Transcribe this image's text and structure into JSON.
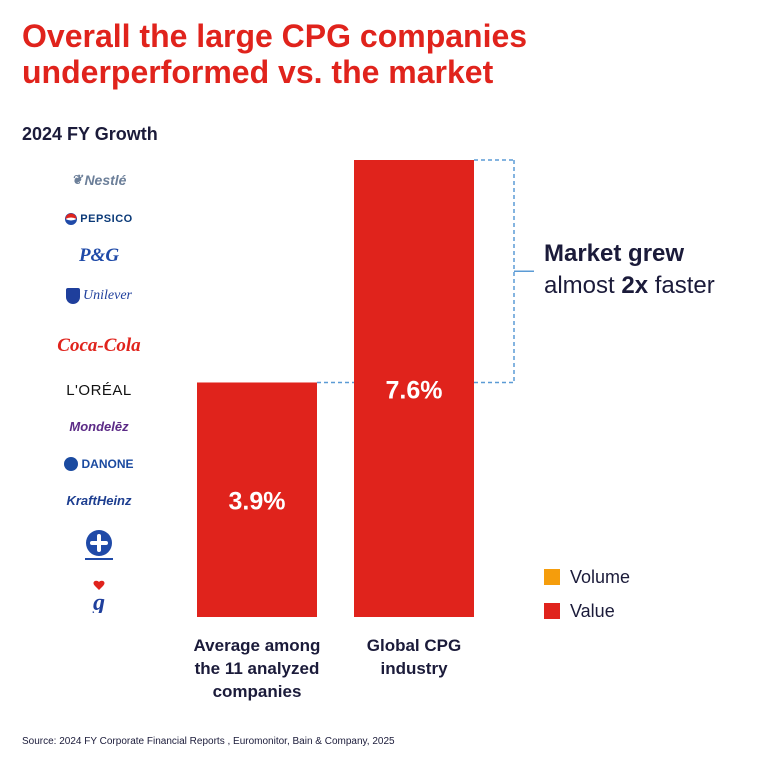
{
  "header": {
    "title": "Overall the large CPG companies underperformed vs. the market",
    "subtitle": "2024 FY Growth"
  },
  "logos": {
    "nestle": "Nestlé",
    "pepsico": "PEPSICO",
    "pg": "P&G",
    "unilever": "Unilever",
    "coca_cola": "Coca-Cola",
    "loreal": "L'ORÉAL",
    "mondelez": "Mondelēz",
    "danone": "DANONE",
    "kraft_heinz": "KraftHeinz",
    "colgate": "COLGATE-PALMOLIVE",
    "general_mills": "General Mills"
  },
  "chart_data": {
    "type": "bar",
    "title": "2024 FY Growth",
    "categories": [
      "Average among the 11 analyzed companies",
      "Global CPG industry"
    ],
    "category_lines": [
      [
        "Average among",
        "the 11 analyzed",
        "companies"
      ],
      [
        "Global CPG",
        "industry"
      ]
    ],
    "values": [
      3.9,
      7.6
    ],
    "data_labels": [
      "3.9%",
      "7.6%"
    ],
    "ylim": [
      0,
      7.6
    ],
    "series": [
      {
        "name": "Value",
        "values": [
          3.9,
          7.6
        ],
        "color": "#e0231c"
      }
    ],
    "legend": [
      {
        "name": "Volume",
        "color": "#f59d0c"
      },
      {
        "name": "Value",
        "color": "#e0231c"
      }
    ],
    "legend_position": "right",
    "grid": false,
    "annotation": {
      "line1": "Market grew",
      "line2_pre": "almost",
      "line2_bold": "2x",
      "line2_post": "faster"
    }
  },
  "colors": {
    "title": "#e0231c",
    "bar": "#e0231c",
    "volume": "#f59d0c",
    "text": "#1b1b3a",
    "bracket": "#5b9bd5"
  },
  "footer": {
    "source": "Source: 2024 FY Corporate Financial Reports , Euromonitor, Bain & Company, 2025"
  }
}
